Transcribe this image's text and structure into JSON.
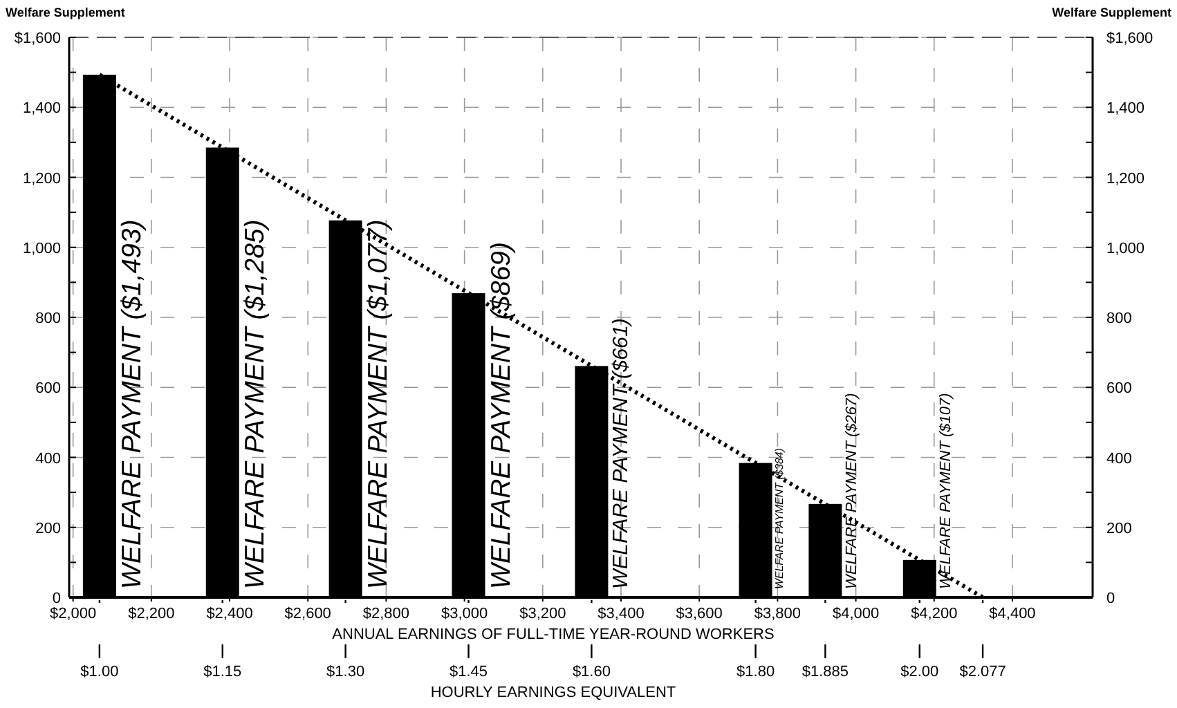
{
  "chart_data": {
    "type": "bar",
    "ylabel": "Welfare Supplement",
    "y2label": "Welfare Supplement",
    "xlabel": "ANNUAL EARNINGS OF FULL-TIME YEAR-ROUND WORKERS",
    "x2label": "HOURLY EARNINGS EQUIVALENT",
    "xlim": [
      1990,
      4605
    ],
    "xticks": [
      {
        "value": 2000,
        "label": "$2,000"
      },
      {
        "value": 2200,
        "label": "$2,200"
      },
      {
        "value": 2400,
        "label": "$2,400"
      },
      {
        "value": 2600,
        "label": "$2,600"
      },
      {
        "value": 2800,
        "label": "$2,800"
      },
      {
        "value": 3000,
        "label": "$3,000"
      },
      {
        "value": 3200,
        "label": "$3,200"
      },
      {
        "value": 3400,
        "label": "$3,400"
      },
      {
        "value": 3600,
        "label": "$3,600"
      },
      {
        "value": 3800,
        "label": "$3,800"
      },
      {
        "value": 4000,
        "label": "$4,000"
      },
      {
        "value": 4200,
        "label": "$4,200"
      },
      {
        "value": 4400,
        "label": "$4,400"
      }
    ],
    "x2lim": [
      0.963,
      2.211
    ],
    "x2ticks": [
      {
        "value": 1.0,
        "label": "$1.00"
      },
      {
        "value": 1.15,
        "label": "$1.15"
      },
      {
        "value": 1.3,
        "label": "$1.30"
      },
      {
        "value": 1.45,
        "label": "$1.45"
      },
      {
        "value": 1.6,
        "label": "$1.60"
      },
      {
        "value": 1.8,
        "label": "$1.80"
      },
      {
        "value": 1.885,
        "label": "$1.885"
      },
      {
        "value": 2.0,
        "label": "$2.00"
      },
      {
        "value": 2.077,
        "label": "$2.077"
      }
    ],
    "ylim": [
      0,
      1600
    ],
    "yticks": [
      0,
      {
        "value": 100,
        "label": null
      },
      200,
      {
        "value": 300,
        "label": null
      },
      {
        "value": 400,
        "label": "400"
      },
      {
        "value": 500,
        "label": null
      },
      600,
      {
        "value": 700,
        "label": null
      },
      800,
      {
        "value": 900,
        "label": null
      },
      {
        "value": 1000,
        "label": "1,000"
      },
      {
        "value": 1100,
        "label": null
      },
      {
        "value": 1200,
        "label": "1,200"
      },
      {
        "value": 1300,
        "label": null
      },
      {
        "value": 1400,
        "label": "1,400"
      },
      {
        "value": 1500,
        "label": null
      },
      {
        "value": 1600,
        "label": "$1,600"
      }
    ],
    "y2lim": [
      0,
      1600
    ],
    "y2ticks": [
      0,
      {
        "value": 100,
        "label": null
      },
      200,
      {
        "value": 300,
        "label": null
      },
      {
        "value": 400,
        "label": "400"
      },
      {
        "value": 500,
        "label": null
      },
      600,
      {
        "value": 700,
        "label": null
      },
      800,
      {
        "value": 900,
        "label": null
      },
      {
        "value": 1000,
        "label": "1,000"
      },
      {
        "value": 1100,
        "label": null
      },
      {
        "value": 1200,
        "label": "1,200"
      },
      {
        "value": 1300,
        "label": null
      },
      {
        "value": 1400,
        "label": "1,400"
      },
      {
        "value": 1500,
        "label": null
      },
      {
        "value": 1600,
        "label": "$1,600"
      }
    ],
    "grid": true,
    "series": [
      {
        "axis": "x2",
        "color": "#000000",
        "x": [
          1.0,
          1.15,
          1.3,
          1.45,
          1.6,
          1.8,
          1.885,
          2.0
        ],
        "values": [
          1493,
          1285,
          1077,
          869,
          661,
          384,
          267,
          107
        ],
        "value_labels": [
          "WELFARE PAYMENT ($1,493)",
          "WELFARE PAYMENT ($1,285)",
          "WELFARE PAYMENT ($1,077)",
          "WELFARE PAYMENT ($869)",
          "WELFARE PAYMENT ($661)",
          "WELFARE PAYMENT ($384)",
          "WELFARE PAYMENT ($267)",
          "WELFARE PAYMENT ($107)"
        ]
      },
      {
        "type": "line",
        "axis": "x2",
        "color": "#000000",
        "line_style": "dotted",
        "marker": "none",
        "x": [
          1.0,
          2.077
        ],
        "values": [
          1493,
          0
        ]
      }
    ]
  }
}
